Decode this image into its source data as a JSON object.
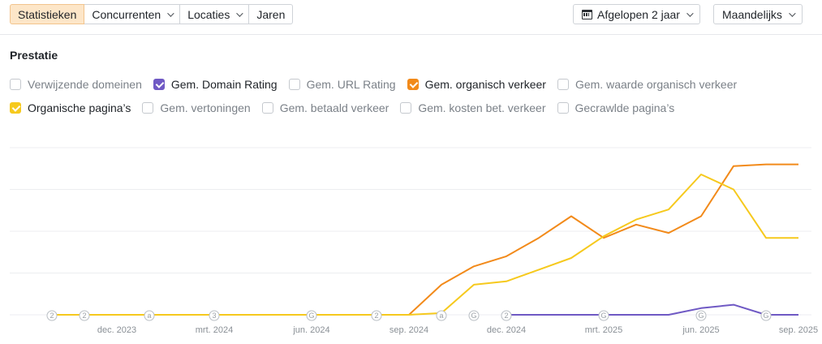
{
  "toolbar": {
    "tabs": [
      {
        "label": "Statistieken",
        "active": true,
        "dropdown": false
      },
      {
        "label": "Concurrenten",
        "active": false,
        "dropdown": true
      },
      {
        "label": "Locaties",
        "active": false,
        "dropdown": true
      },
      {
        "label": "Jaren",
        "active": false,
        "dropdown": false
      }
    ],
    "period_label": "Afgelopen 2 jaar",
    "interval_label": "Maandelijks"
  },
  "section_title": "Prestatie",
  "metrics_row1": [
    {
      "label": "Verwijzende domeinen",
      "checked": false,
      "color": "#c5c9ce"
    },
    {
      "label": "Gem. Domain Rating",
      "checked": true,
      "color": "#6f59c4"
    },
    {
      "label": "Gem. URL Rating",
      "checked": false,
      "color": "#c5c9ce"
    },
    {
      "label": "Gem. organisch verkeer",
      "checked": true,
      "color": "#f28a1a"
    },
    {
      "label": "Gem. waarde organisch verkeer",
      "checked": false,
      "color": "#c5c9ce"
    }
  ],
  "metrics_row2": [
    {
      "label": "Organische pagina’s",
      "checked": true,
      "color": "#f6c91d"
    },
    {
      "label": "Gem. vertoningen",
      "checked": false,
      "color": "#c5c9ce"
    },
    {
      "label": "Gem. betaald verkeer",
      "checked": false,
      "color": "#c5c9ce"
    },
    {
      "label": "Gem. kosten bet. verkeer",
      "checked": false,
      "color": "#c5c9ce"
    },
    {
      "label": "Gecrawlde pagina’s",
      "checked": false,
      "color": "#c5c9ce"
    }
  ],
  "chart_data": {
    "type": "line",
    "x": [
      "okt. 2023",
      "nov. 2023",
      "dec. 2023",
      "jan. 2024",
      "feb. 2024",
      "mrt. 2024",
      "apr. 2024",
      "mei 2024",
      "jun. 2024",
      "jul. 2024",
      "aug. 2024",
      "sep. 2024",
      "okt. 2024",
      "nov. 2024",
      "dec. 2024",
      "jan. 2025",
      "feb. 2025",
      "mrt. 2025",
      "apr. 2025",
      "mei 2025",
      "jun. 2025",
      "jul. 2025",
      "aug. 2025",
      "sep. 2025"
    ],
    "x_tick_labels": [
      "dec. 2023",
      "mrt. 2024",
      "jun. 2024",
      "sep. 2024",
      "dec. 2024",
      "mrt. 2025",
      "jun. 2025",
      "sep. 2025"
    ],
    "x_tick_indices": [
      2,
      5,
      8,
      11,
      14,
      17,
      20,
      23
    ],
    "ylim": [
      0,
      100
    ],
    "grid": true,
    "series": [
      {
        "name": "Gem. organisch verkeer",
        "color": "#f28a1a",
        "values": [
          0,
          0,
          0,
          0,
          0,
          0,
          0,
          0,
          0,
          0,
          0,
          0,
          18,
          29,
          35,
          46,
          59,
          46,
          54,
          49,
          59,
          89,
          90,
          90
        ]
      },
      {
        "name": "Organische pagina’s",
        "color": "#f6c91d",
        "values": [
          0,
          0,
          0,
          0,
          0,
          0,
          0,
          0,
          0,
          0,
          0,
          0,
          1,
          18,
          20,
          27,
          34,
          47,
          57,
          63,
          84,
          75,
          46,
          46
        ]
      },
      {
        "name": "Gem. Domain Rating",
        "color": "#6f59c4",
        "values": [
          null,
          null,
          null,
          null,
          null,
          null,
          null,
          null,
          null,
          null,
          null,
          null,
          null,
          null,
          0,
          0,
          0,
          0,
          0,
          0,
          4,
          6,
          0,
          0
        ]
      }
    ],
    "markers": [
      {
        "x_index": 0,
        "text": "2"
      },
      {
        "x_index": 1,
        "text": "2"
      },
      {
        "x_index": 3,
        "text": "a"
      },
      {
        "x_index": 5,
        "text": "3"
      },
      {
        "x_index": 8,
        "text": "G"
      },
      {
        "x_index": 10,
        "text": "2"
      },
      {
        "x_index": 12,
        "text": "a"
      },
      {
        "x_index": 13,
        "text": "G"
      },
      {
        "x_index": 14,
        "text": "2"
      },
      {
        "x_index": 17,
        "text": "G"
      },
      {
        "x_index": 20,
        "text": "G"
      },
      {
        "x_index": 22,
        "text": "G"
      }
    ]
  }
}
